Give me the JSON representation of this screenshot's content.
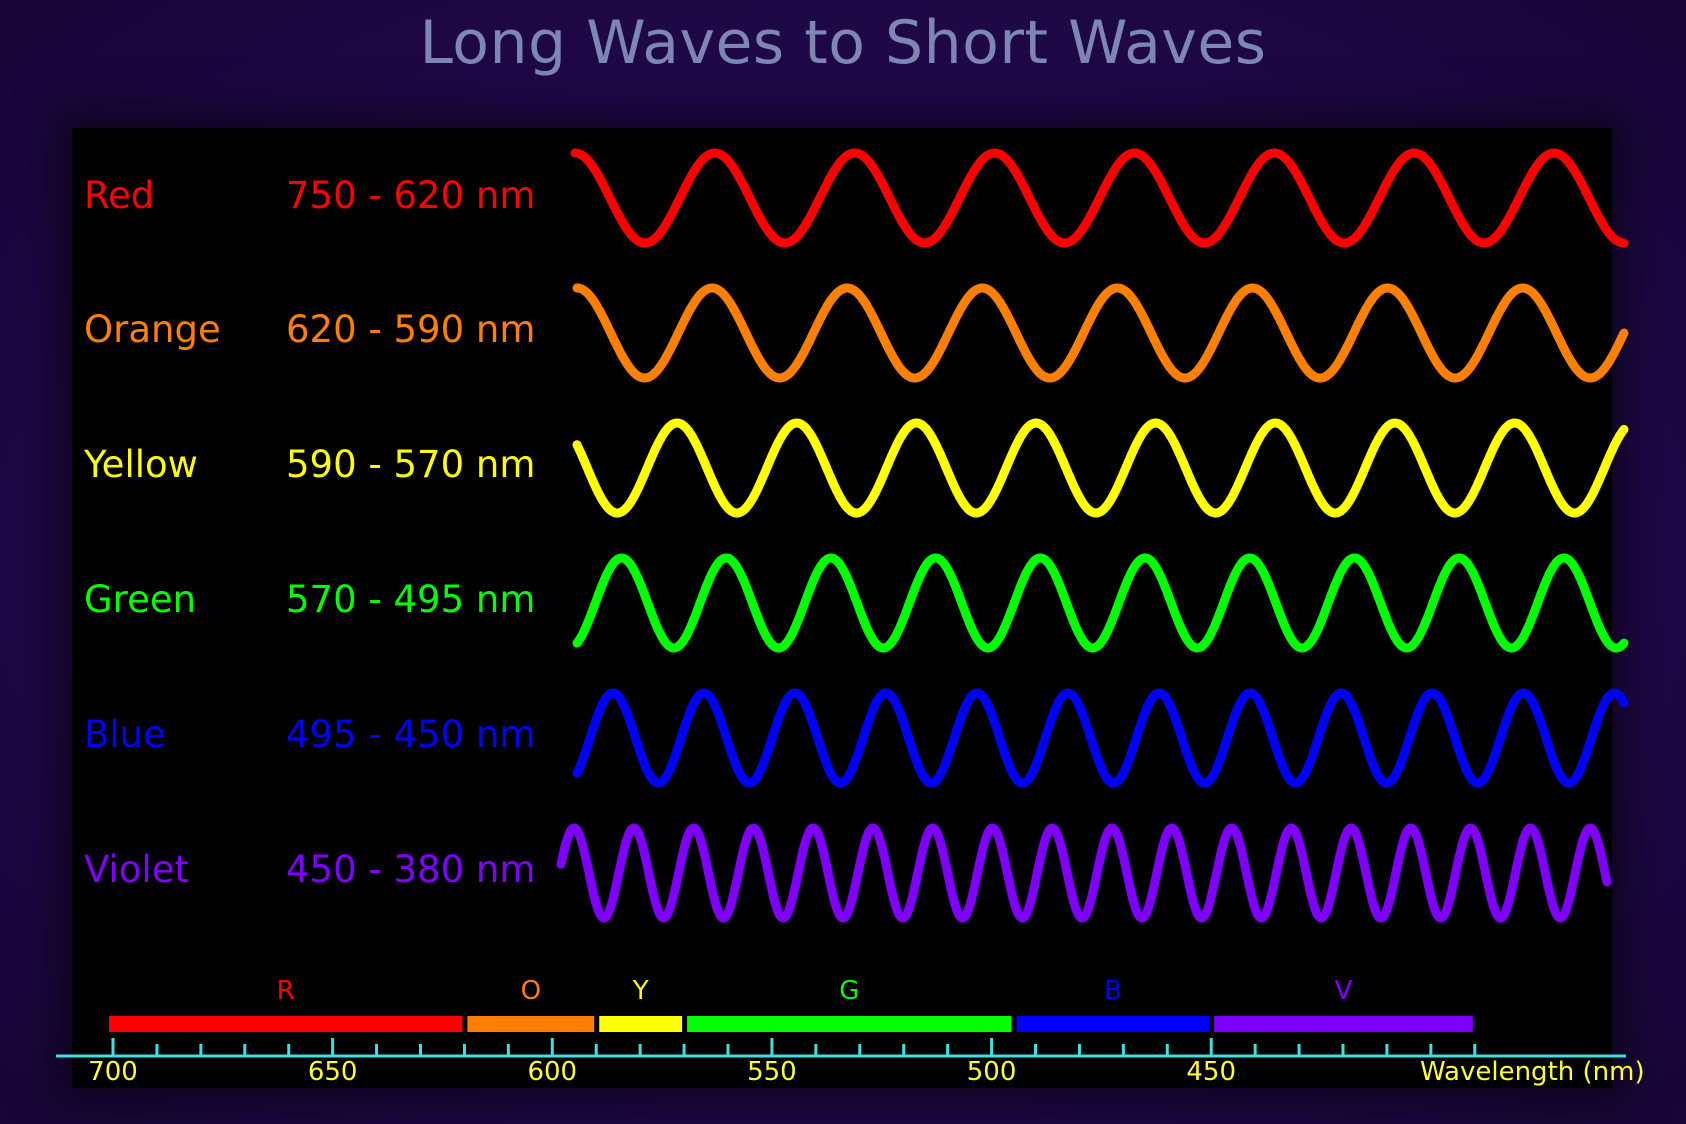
{
  "title": "Long Waves to Short Waves",
  "rows": [
    {
      "label": "Red",
      "range": "750 - 620 nm",
      "color": "#ff0000",
      "cycles": 7.5
    },
    {
      "label": "Orange",
      "range": "620 - 590 nm",
      "color": "#ff8000",
      "cycles": 7.75
    },
    {
      "label": "Yellow",
      "range": "590 - 570 nm",
      "color": "#ffff00",
      "cycles": 8.75
    },
    {
      "label": "Green",
      "range": "570 - 495 nm",
      "color": "#00ff00",
      "cycles": 10
    },
    {
      "label": "Blue",
      "range": "495 - 450 nm",
      "color": "#0000ff",
      "cycles": 11.5
    },
    {
      "label": "Violet",
      "range": "450 - 380 nm",
      "color": "#7f00ff",
      "cycles": 17.5
    }
  ],
  "spectrum_bands": [
    {
      "letter": "R",
      "start_nm": 700,
      "end_nm": 620,
      "color": "#ff0000"
    },
    {
      "letter": "O",
      "start_nm": 620,
      "end_nm": 590,
      "color": "#ff8000"
    },
    {
      "letter": "Y",
      "start_nm": 590,
      "end_nm": 570,
      "color": "#ffff00"
    },
    {
      "letter": "G",
      "start_nm": 570,
      "end_nm": 495,
      "color": "#00ff00"
    },
    {
      "letter": "B",
      "start_nm": 495,
      "end_nm": 450,
      "color": "#0000ff"
    },
    {
      "letter": "V",
      "start_nm": 450,
      "end_nm": 390,
      "color": "#7f00ff"
    }
  ],
  "axis": {
    "title": "Wavelength (nm)",
    "range_nm": [
      700,
      390
    ],
    "major_ticks": [
      700,
      650,
      600,
      550,
      500,
      450
    ],
    "minor_step_nm": 10,
    "axis_color": "#40e0e0",
    "label_color": "#ffff33"
  }
}
